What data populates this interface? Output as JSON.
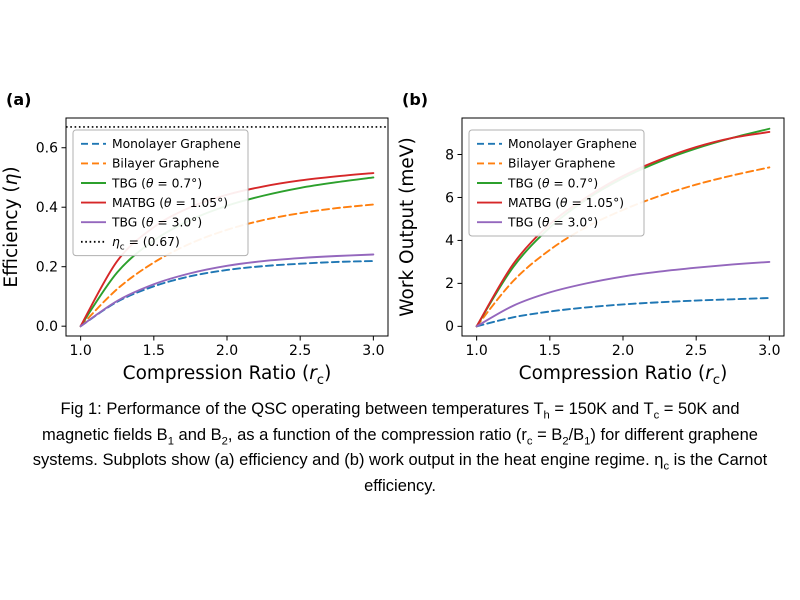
{
  "figure": {
    "panel_labels": {
      "a": "(a)",
      "b": "(b)"
    },
    "background": "#ffffff"
  },
  "colors": {
    "monolayer": "#1f77b4",
    "bilayer": "#ff7f0e",
    "tbg_0_7": "#2ca02c",
    "matbg": "#d62728",
    "tbg_3_0": "#9467bd",
    "carnot": "#000000",
    "axis": "#000000",
    "legend_border": "#b0b0b0"
  },
  "caption": {
    "segments": [
      {
        "t": "Fig 1: Performance of the QSC operating between temperatures T"
      },
      {
        "t": "h",
        "sub": true
      },
      {
        "t": " = 150K and T"
      },
      {
        "t": "c",
        "sub": true
      },
      {
        "t": " = 50K and magnetic fields B"
      },
      {
        "t": "1",
        "sub": true
      },
      {
        "t": " and B"
      },
      {
        "t": "2",
        "sub": true
      },
      {
        "t": ", as a function of the compression ratio (r"
      },
      {
        "t": "c",
        "sub": true
      },
      {
        "t": " = B"
      },
      {
        "t": "2",
        "sub": true
      },
      {
        "t": "/B"
      },
      {
        "t": "1",
        "sub": true
      },
      {
        "t": ") for different graphene systems. Subplots show (a) efficiency and (b) work output in the heat engine regime. η"
      },
      {
        "t": "c",
        "sub": true
      },
      {
        "t": " is the Carnot efficiency."
      }
    ]
  },
  "chart_data": [
    {
      "type": "line",
      "panel": "a",
      "xlabel": [
        {
          "t": "Compression Ratio ("
        },
        {
          "t": "r",
          "italic": true
        },
        {
          "t": "c",
          "sub": true
        },
        {
          "t": ")"
        }
      ],
      "ylabel": [
        {
          "t": "Efficiency ("
        },
        {
          "t": "η",
          "italic": true
        },
        {
          "t": ")"
        }
      ],
      "xlim": [
        0.9,
        3.1
      ],
      "ylim": [
        -0.033,
        0.7
      ],
      "xticks": [
        1.0,
        1.5,
        2.0,
        2.5,
        3.0
      ],
      "xtick_labels": [
        "1.0",
        "1.5",
        "2.0",
        "2.5",
        "3.0"
      ],
      "yticks": [
        0.0,
        0.2,
        0.4,
        0.6
      ],
      "ytick_labels": [
        "0.0",
        "0.2",
        "0.4",
        "0.6"
      ],
      "grid": false,
      "x": [
        1.0,
        1.25,
        1.5,
        1.75,
        2.0,
        2.25,
        2.5,
        2.75,
        3.0
      ],
      "series": [
        {
          "name": [
            {
              "t": "Monolayer Graphene"
            }
          ],
          "color": "#1f77b4",
          "style": "dashed",
          "values": [
            0,
            0.082,
            0.134,
            0.168,
            0.189,
            0.202,
            0.21,
            0.216,
            0.219
          ]
        },
        {
          "name": [
            {
              "t": "Bilayer Graphene"
            }
          ],
          "color": "#ff7f0e",
          "style": "dashed",
          "values": [
            0,
            0.125,
            0.214,
            0.278,
            0.324,
            0.357,
            0.38,
            0.397,
            0.409
          ]
        },
        {
          "name": [
            {
              "t": "TBG ("
            },
            {
              "t": "θ",
              "italic": true
            },
            {
              "t": " = 0.7°)"
            }
          ],
          "color": "#2ca02c",
          "style": "solid",
          "values": [
            0,
            0.181,
            0.288,
            0.357,
            0.405,
            0.439,
            0.465,
            0.484,
            0.5
          ]
        },
        {
          "name": [
            {
              "t": "MATBG ("
            },
            {
              "t": "θ",
              "italic": true
            },
            {
              "t": " = 1.05°)"
            }
          ],
          "color": "#d62728",
          "style": "solid",
          "values": [
            0,
            0.219,
            0.333,
            0.4,
            0.442,
            0.47,
            0.49,
            0.504,
            0.515
          ]
        },
        {
          "name": [
            {
              "t": "TBG ("
            },
            {
              "t": "θ",
              "italic": true
            },
            {
              "t": " = 3.0°)"
            }
          ],
          "color": "#9467bd",
          "style": "solid",
          "values": [
            0,
            0.085,
            0.141,
            0.178,
            0.203,
            0.219,
            0.229,
            0.236,
            0.241
          ]
        }
      ],
      "reference_line": {
        "value": 0.67,
        "color": "#000000",
        "style": "dotted",
        "name": [
          {
            "t": "η",
            "italic": true
          },
          {
            "t": "c",
            "sub": true
          },
          {
            "t": " = (0.67)"
          }
        ]
      },
      "legend": {
        "position": "upper left",
        "include_reference": true
      }
    },
    {
      "type": "line",
      "panel": "b",
      "xlabel": [
        {
          "t": "Compression Ratio ("
        },
        {
          "t": "r",
          "italic": true
        },
        {
          "t": "c",
          "sub": true
        },
        {
          "t": ")"
        }
      ],
      "ylabel": [
        {
          "t": "Work Output (meV)"
        }
      ],
      "xlim": [
        0.9,
        3.1
      ],
      "ylim": [
        -0.45,
        9.7
      ],
      "xticks": [
        1.0,
        1.5,
        2.0,
        2.5,
        3.0
      ],
      "xtick_labels": [
        "1.0",
        "1.5",
        "2.0",
        "2.5",
        "3.0"
      ],
      "yticks": [
        0,
        2,
        4,
        6,
        8
      ],
      "ytick_labels": [
        "0",
        "2",
        "4",
        "6",
        "8"
      ],
      "grid": false,
      "x": [
        1.0,
        1.25,
        1.5,
        1.75,
        2.0,
        2.25,
        2.5,
        2.75,
        3.0
      ],
      "series": [
        {
          "name": [
            {
              "t": "Monolayer Graphene"
            }
          ],
          "color": "#1f77b4",
          "style": "dashed",
          "values": [
            0,
            0.42,
            0.69,
            0.88,
            1.02,
            1.12,
            1.2,
            1.26,
            1.32
          ]
        },
        {
          "name": [
            {
              "t": "Bilayer Graphene"
            }
          ],
          "color": "#ff7f0e",
          "style": "dashed",
          "values": [
            0,
            2.11,
            3.56,
            4.62,
            5.42,
            6.07,
            6.6,
            7.03,
            7.4
          ]
        },
        {
          "name": [
            {
              "t": "TBG ("
            },
            {
              "t": "θ",
              "italic": true
            },
            {
              "t": " = 0.7°)"
            }
          ],
          "color": "#2ca02c",
          "style": "solid",
          "values": [
            0,
            2.76,
            4.6,
            5.91,
            6.9,
            7.67,
            8.28,
            8.78,
            9.2
          ]
        },
        {
          "name": [
            {
              "t": "MATBG ("
            },
            {
              "t": "θ",
              "italic": true
            },
            {
              "t": " = 1.05°)"
            }
          ],
          "color": "#d62728",
          "style": "solid",
          "values": [
            0,
            2.9,
            4.75,
            6.0,
            7.0,
            7.75,
            8.35,
            8.78,
            9.05
          ]
        },
        {
          "name": [
            {
              "t": "TBG ("
            },
            {
              "t": "θ",
              "italic": true
            },
            {
              "t": " = 3.0°)"
            }
          ],
          "color": "#9467bd",
          "style": "solid",
          "values": [
            0,
            0.96,
            1.58,
            2.0,
            2.32,
            2.55,
            2.73,
            2.88,
            3.0
          ]
        }
      ],
      "legend": {
        "position": "upper left",
        "include_reference": false
      }
    }
  ]
}
